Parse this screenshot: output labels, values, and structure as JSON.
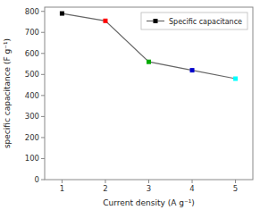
{
  "chart_data": {
    "type": "line",
    "xlabel": "Current density (A g⁻¹)",
    "ylabel": "specific capacitance (F g⁻¹)",
    "x": [
      1,
      2,
      3,
      4,
      5
    ],
    "series": [
      {
        "name": "Specific capacitance",
        "color": "#666666",
        "colors": [
          "black",
          "red",
          "#00aa00",
          "#0000cc",
          "cyan"
        ],
        "values": [
          790,
          755,
          560,
          520,
          480
        ],
        "marker": "square",
        "line_style": "solid"
      }
    ],
    "xlim": [
      0.6,
      5.4
    ],
    "ylim": [
      0,
      820
    ],
    "xticks": [
      1,
      2,
      3,
      4,
      5
    ],
    "yticks": [
      0,
      100,
      200,
      300,
      400,
      500,
      600,
      700,
      800
    ],
    "legend": "upper right",
    "grid": false
  }
}
